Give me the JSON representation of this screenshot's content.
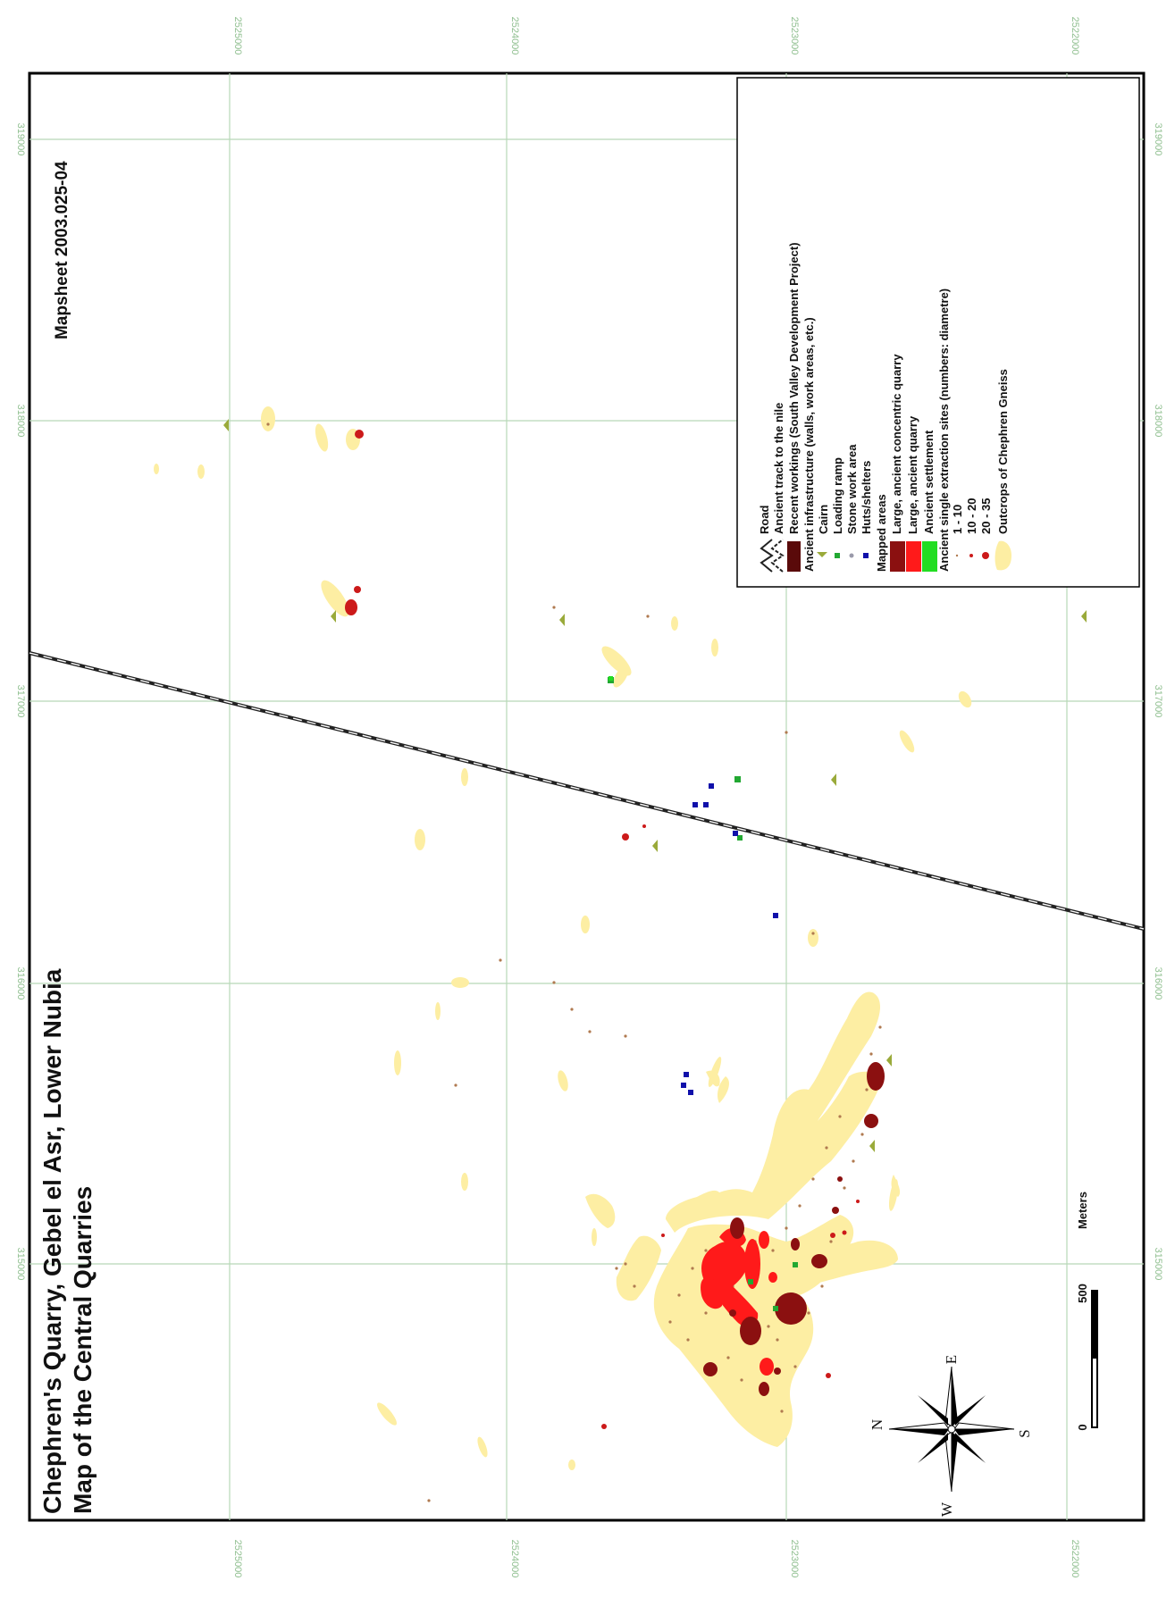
{
  "map": {
    "title_line1": "Chephren's Quarry, Gebel el Asr, Lower Nubia",
    "title_line2": "Map of the Central Quarries",
    "mapsheet": "Mapsheet 2003.025-04",
    "easting_labels": [
      "315000",
      "316000",
      "317000",
      "318000",
      "319000"
    ],
    "northing_labels": [
      "2525000",
      "2524000",
      "2523000",
      "2522000"
    ],
    "northing_labels_bottom": [
      "2525000",
      "2524000",
      "2523000",
      "2522000"
    ],
    "scale_bar": {
      "start": "0",
      "end": "500",
      "unit": "Meters"
    },
    "compass": {
      "n": "N",
      "e": "E",
      "s": "S",
      "w": "W"
    },
    "colors": {
      "outcrop": "#fdeea3",
      "concentric_quarry": "#8b1010",
      "ancient_quarry": "#ff1a1a",
      "settlement": "#22dd22",
      "cairn": "#9aaa3a",
      "loading_ramp": "#22a832",
      "huts": "#1010aa",
      "grid": "#b8d8b8",
      "extraction_dot": "#cc1a1a",
      "road": "#222222"
    },
    "legend": {
      "road": "Road",
      "track": "Ancient track to the nile",
      "recent": "Recent workings (South Valley Development Project)",
      "infra": "Ancient infrastructure (walls, work areas, etc.)",
      "cairn": "Cairn",
      "loading_ramp": "Loading ramp",
      "stone_work": "Stone work area",
      "huts": "Huts/shelters",
      "mapped": "Mapped areas",
      "concentric": "Large, ancient concentric quarry",
      "large_quarry": "Large, ancient quarry",
      "settlement": "Ancient settlement",
      "single": "Ancient single extraction sites (numbers: diametre)",
      "s1": "1 - 10",
      "s2": "10 - 20",
      "s3": "20 - 35",
      "outcrops": "Outcrops of Chephren Gneiss"
    }
  }
}
